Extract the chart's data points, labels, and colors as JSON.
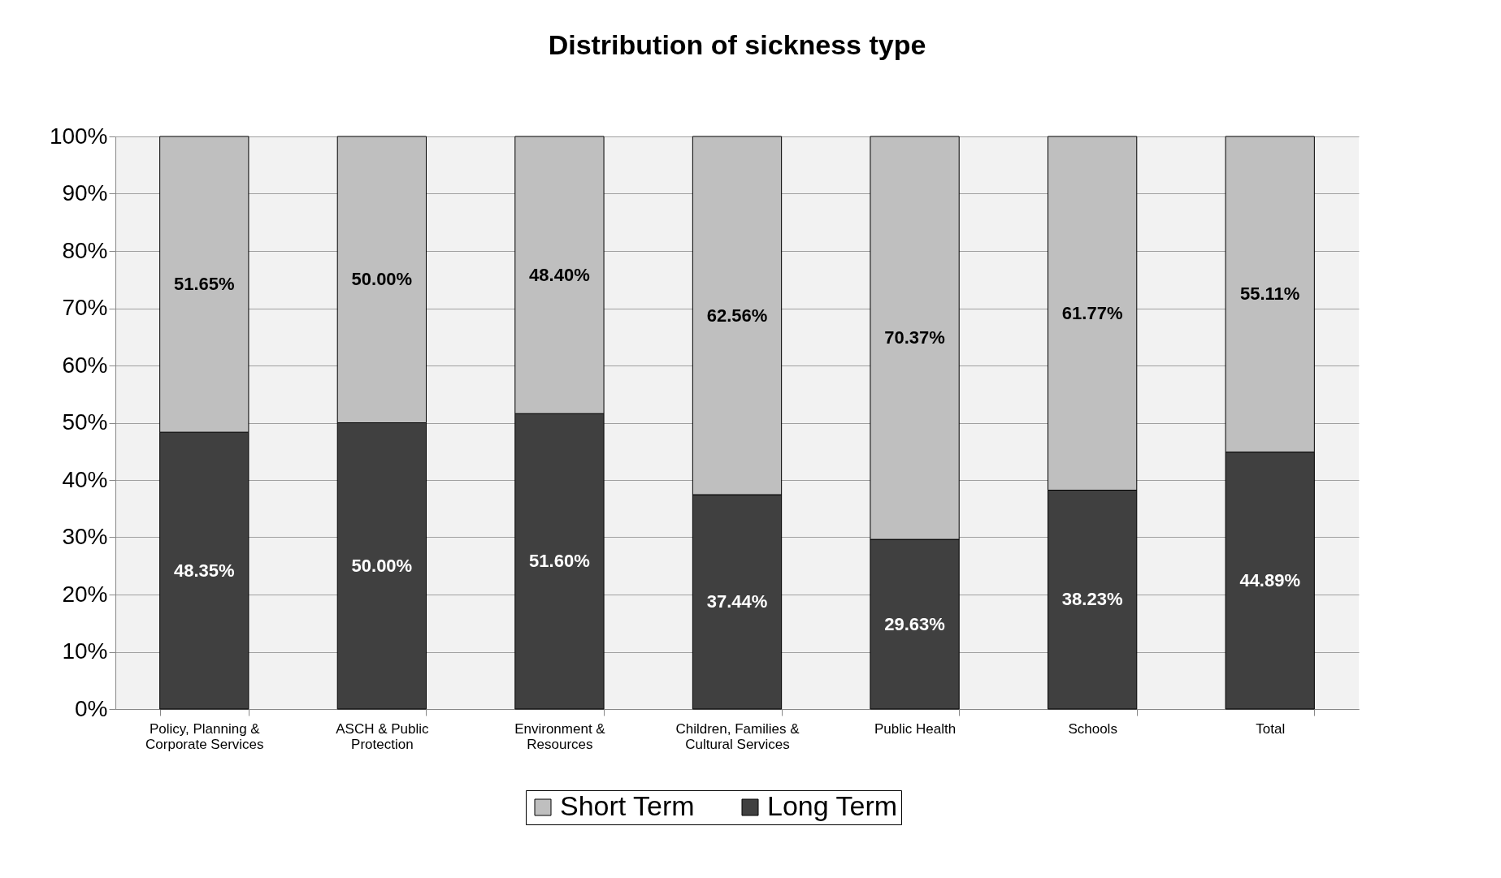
{
  "chart_data": {
    "type": "bar",
    "title": "Distribution of sickness type",
    "stacked": true,
    "categories": [
      "Policy, Planning & Corporate Services",
      "ASCH & Public Protection",
      "Environment & Resources",
      "Children, Families & Cultural Services",
      "Public Health",
      "Schools",
      "Total"
    ],
    "series": [
      {
        "name": "Long Term",
        "color": "#404040",
        "values": [
          48.35,
          50.0,
          51.6,
          37.44,
          29.63,
          38.23,
          44.89
        ],
        "value_labels": [
          "48.35%",
          "50.00%",
          "51.60%",
          "37.44%",
          "29.63%",
          "38.23%",
          "44.89%"
        ]
      },
      {
        "name": "Short Term",
        "color": "#bfbfbf",
        "values": [
          51.65,
          50.0,
          48.4,
          62.56,
          70.37,
          61.77,
          55.11
        ],
        "value_labels": [
          "51.65%",
          "50.00%",
          "48.40%",
          "62.56%",
          "70.37%",
          "61.77%",
          "55.11%"
        ]
      }
    ],
    "ylim": [
      0,
      100
    ],
    "yticks": [
      {
        "value": 0,
        "label": "0%"
      },
      {
        "value": 10,
        "label": "10%"
      },
      {
        "value": 20,
        "label": "20%"
      },
      {
        "value": 30,
        "label": "30%"
      },
      {
        "value": 40,
        "label": "40%"
      },
      {
        "value": 50,
        "label": "50%"
      },
      {
        "value": 60,
        "label": "60%"
      },
      {
        "value": 70,
        "label": "70%"
      },
      {
        "value": 80,
        "label": "80%"
      },
      {
        "value": 90,
        "label": "90%"
      },
      {
        "value": 100,
        "label": "100%"
      }
    ],
    "grid": "y",
    "legend": "bottom"
  }
}
